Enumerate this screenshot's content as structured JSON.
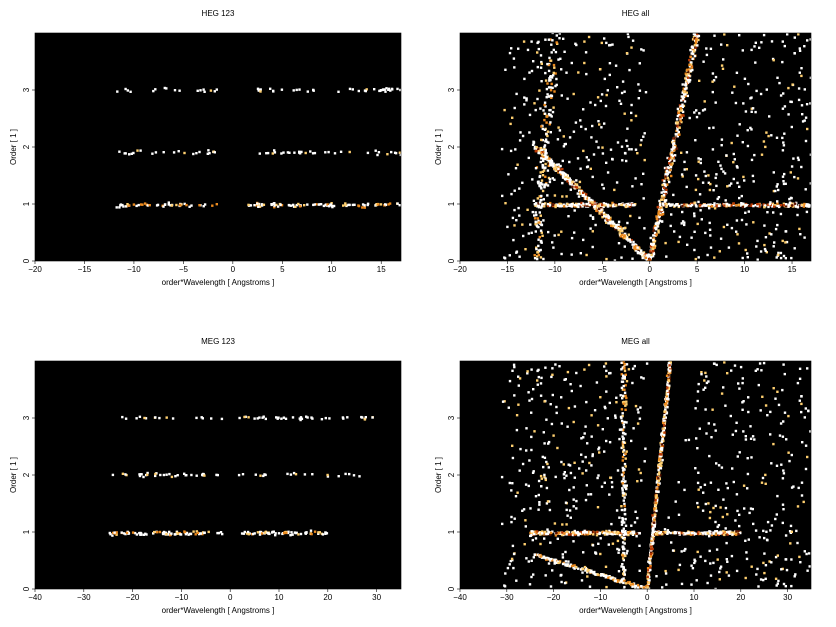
{
  "chart_data": [
    {
      "type": "heatmap",
      "title": "HEG 123",
      "xlabel": "order*Wavelength [ Angstroms ]",
      "ylabel": "Order [ 1 ]",
      "xlim": [
        -20,
        17
      ],
      "ylim": [
        0,
        4
      ],
      "xticks": [
        -20,
        -15,
        -10,
        -5,
        0,
        5,
        10,
        15
      ],
      "yticks": [
        0,
        1,
        2,
        3
      ],
      "grid": false,
      "background": "#000000",
      "colormap": [
        "#5a1400",
        "#b83a06",
        "#ec8a1e",
        "#ffd070",
        "#ffffff"
      ],
      "features": [
        {
          "order": 1,
          "x_range": [
            -12,
            17
          ],
          "y_center": 0.98,
          "intensity": "medium"
        },
        {
          "order": 2,
          "x_range": [
            -12,
            17
          ],
          "y_center": 1.9,
          "intensity": "low"
        },
        {
          "order": 3,
          "x_range": [
            -12,
            17
          ],
          "y_center": 3.0,
          "intensity": "low"
        }
      ]
    },
    {
      "type": "heatmap",
      "title": "HEG all",
      "xlabel": "order*Wavelength [ Angstroms ]",
      "ylabel": "Order [ 1 ]",
      "xlim": [
        -20,
        17
      ],
      "ylim": [
        0,
        4
      ],
      "xticks": [
        -20,
        -15,
        -10,
        -5,
        0,
        5,
        10,
        15
      ],
      "yticks": [
        0,
        1,
        2,
        3
      ],
      "grid": false,
      "background": "#000000",
      "colormap": [
        "#5a1400",
        "#b83a06",
        "#ec8a1e",
        "#ffd070",
        "#ffffff"
      ],
      "features": [
        {
          "order": 1,
          "x_range": [
            -12,
            17
          ],
          "y_center": 0.98,
          "intensity": "high"
        },
        {
          "kind": "diagonal",
          "from": [
            0,
            0
          ],
          "to": [
            5,
            4
          ],
          "intensity": "high"
        },
        {
          "kind": "diagonal",
          "from": [
            0,
            0
          ],
          "to": [
            -12,
            2
          ],
          "intensity": "high"
        },
        {
          "kind": "wedge",
          "from": [
            -12,
            0
          ],
          "to": [
            -10,
            4
          ],
          "intensity": "medium"
        }
      ]
    },
    {
      "type": "heatmap",
      "title": "MEG 123",
      "xlabel": "order*Wavelength [ Angstroms ]",
      "ylabel": "Order [ 1 ]",
      "xlim": [
        -40,
        35
      ],
      "ylim": [
        0,
        4
      ],
      "xticks": [
        -40,
        -30,
        -20,
        -10,
        0,
        10,
        20,
        30
      ],
      "yticks": [
        0,
        1,
        2,
        3
      ],
      "grid": false,
      "background": "#000000",
      "colormap": [
        "#5a1400",
        "#b83a06",
        "#ec8a1e",
        "#ffd070",
        "#ffffff"
      ],
      "features": [
        {
          "order": 1,
          "x_range": [
            -25,
            20
          ],
          "y_center": 0.98,
          "intensity": "medium"
        },
        {
          "order": 2,
          "x_range": [
            -25,
            30
          ],
          "y_center": 2.0,
          "intensity": "low"
        },
        {
          "order": 3,
          "x_range": [
            -25,
            30
          ],
          "y_center": 3.0,
          "intensity": "low"
        }
      ]
    },
    {
      "type": "heatmap",
      "title": "MEG all",
      "xlabel": "order*Wavelength [ Angstroms ]",
      "ylabel": "Order [ 1 ]",
      "xlim": [
        -40,
        35
      ],
      "ylim": [
        0,
        4
      ],
      "xticks": [
        -40,
        -30,
        -20,
        -10,
        0,
        10,
        20,
        30
      ],
      "yticks": [
        0,
        1,
        2,
        3
      ],
      "grid": false,
      "background": "#000000",
      "colormap": [
        "#5a1400",
        "#b83a06",
        "#ec8a1e",
        "#ffd070",
        "#ffffff"
      ],
      "features": [
        {
          "order": 1,
          "x_range": [
            -25,
            20
          ],
          "y_center": 0.98,
          "intensity": "high"
        },
        {
          "kind": "diagonal",
          "from": [
            0,
            0
          ],
          "to": [
            5,
            4
          ],
          "intensity": "high"
        },
        {
          "kind": "diagonal",
          "from": [
            0,
            0
          ],
          "to": [
            -24,
            0.6
          ],
          "intensity": "medium"
        },
        {
          "kind": "wedge",
          "from": [
            -5,
            0
          ],
          "to": [
            -5,
            4
          ],
          "intensity": "medium"
        }
      ]
    }
  ]
}
